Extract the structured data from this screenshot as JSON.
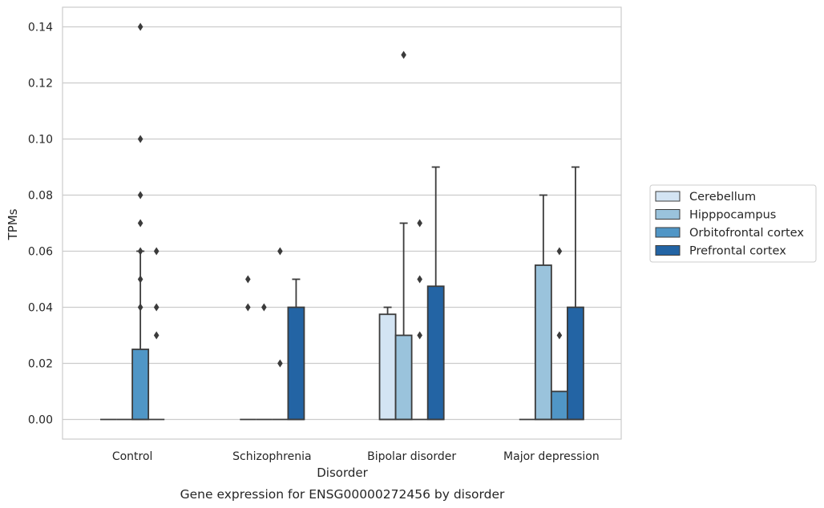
{
  "chart_data": {
    "type": "box",
    "caption": "Gene expression for ENSG00000272456 by disorder",
    "xlabel": "Disorder",
    "ylabel": "TPMs",
    "ylim": [
      -0.007,
      0.147
    ],
    "yticks": [
      0.0,
      0.02,
      0.04,
      0.06,
      0.08,
      0.1,
      0.12,
      0.14
    ],
    "ytick_labels": [
      "0.00",
      "0.02",
      "0.04",
      "0.06",
      "0.08",
      "0.10",
      "0.12",
      "0.14"
    ],
    "grid": true,
    "legend_position": "right",
    "categories": [
      "Control",
      "Schizophrenia",
      "Bipolar disorder",
      "Major depression"
    ],
    "series": [
      {
        "name": "Cerebellum",
        "color": "#d3e4f3",
        "boxes": [
          {
            "q1": 0,
            "median": 0,
            "q3": 0,
            "whislo": 0,
            "whishi": 0,
            "fliers": []
          },
          {
            "q1": 0,
            "median": 0,
            "q3": 0,
            "whislo": 0,
            "whishi": 0,
            "fliers": [
              0.04,
              0.05
            ]
          },
          {
            "q1": 0,
            "median": 0,
            "q3": 0.0375,
            "whislo": 0,
            "whishi": 0.04,
            "fliers": []
          },
          {
            "q1": 0,
            "median": 0,
            "q3": 0,
            "whislo": 0,
            "whishi": 0,
            "fliers": []
          }
        ]
      },
      {
        "name": "Hipppocampus",
        "color": "#9ac3dc",
        "boxes": [
          {
            "q1": 0,
            "median": 0,
            "q3": 0,
            "whislo": 0,
            "whishi": 0,
            "fliers": []
          },
          {
            "q1": 0,
            "median": 0,
            "q3": 0,
            "whislo": 0,
            "whishi": 0,
            "fliers": [
              0.04
            ]
          },
          {
            "q1": 0,
            "median": 0,
            "q3": 0.03,
            "whislo": 0,
            "whishi": 0.07,
            "fliers": [
              0.13
            ]
          },
          {
            "q1": 0,
            "median": 0,
            "q3": 0.055,
            "whislo": 0,
            "whishi": 0.08,
            "fliers": []
          }
        ]
      },
      {
        "name": "Orbitofrontal cortex",
        "color": "#5096c6",
        "boxes": [
          {
            "q1": 0,
            "median": 0,
            "q3": 0.025,
            "whislo": 0,
            "whishi": 0.06,
            "fliers": [
              0.04,
              0.05,
              0.06,
              0.07,
              0.08,
              0.1,
              0.14
            ]
          },
          {
            "q1": 0,
            "median": 0,
            "q3": 0,
            "whislo": 0,
            "whishi": 0,
            "fliers": [
              0.02,
              0.06
            ]
          },
          {
            "q1": 0,
            "median": 0,
            "q3": 0,
            "whislo": 0,
            "whishi": 0,
            "fliers": [
              0.03,
              0.05,
              0.07
            ]
          },
          {
            "q1": 0,
            "median": 0,
            "q3": 0.01,
            "whislo": 0,
            "whishi": 0.01,
            "fliers": [
              0.03,
              0.06
            ]
          }
        ]
      },
      {
        "name": "Prefrontal cortex",
        "color": "#2364a4",
        "boxes": [
          {
            "q1": 0,
            "median": 0,
            "q3": 0,
            "whislo": 0,
            "whishi": 0,
            "fliers": [
              0.03,
              0.04,
              0.06
            ]
          },
          {
            "q1": 0,
            "median": 0,
            "q3": 0.04,
            "whislo": 0,
            "whishi": 0.05,
            "fliers": []
          },
          {
            "q1": 0,
            "median": 0,
            "q3": 0.0475,
            "whislo": 0,
            "whishi": 0.09,
            "fliers": []
          },
          {
            "q1": 0,
            "median": 0,
            "q3": 0.04,
            "whislo": 0,
            "whishi": 0.09,
            "fliers": []
          }
        ]
      }
    ]
  }
}
